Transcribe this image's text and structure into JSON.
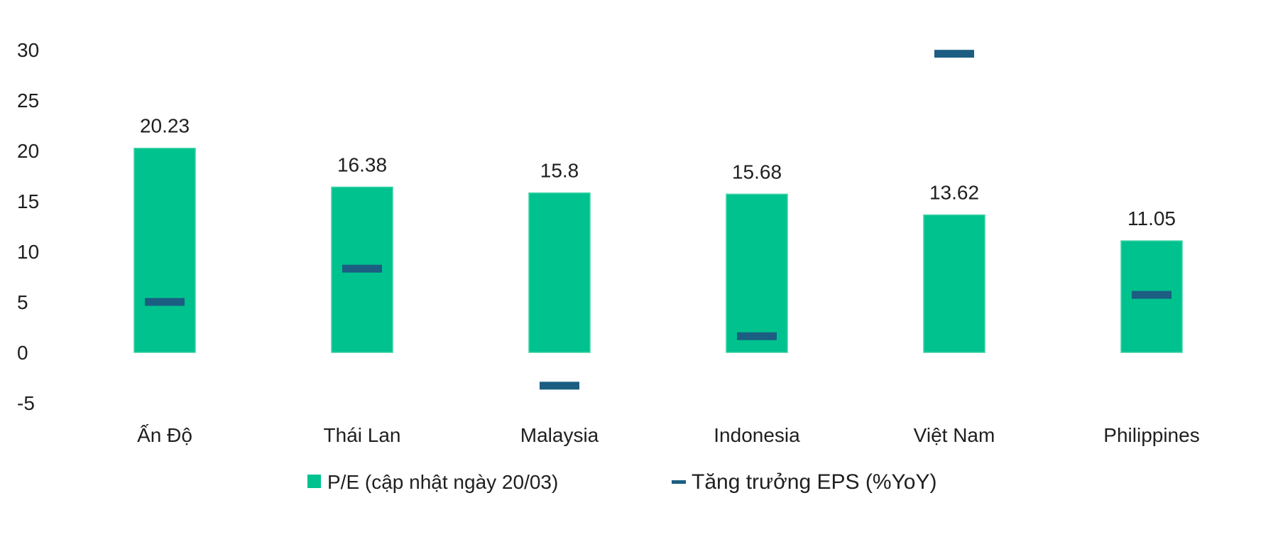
{
  "chart_data": {
    "type": "bar",
    "categories": [
      "Ấn Độ",
      "Thái Lan",
      "Malaysia",
      "Indonesia",
      "Việt Nam",
      "Philippines"
    ],
    "series": [
      {
        "name": "P/E (cập nhật ngày 20/03)",
        "kind": "bar",
        "color": "#00c28e",
        "values": [
          20.23,
          16.38,
          15.8,
          15.68,
          13.62,
          11.05
        ],
        "data_labels": [
          "20.23",
          "16.38",
          "15.8",
          "15.68",
          "13.62",
          "11.05"
        ]
      },
      {
        "name": "Tăng trưởng EPS (%YoY)",
        "kind": "marker-dash",
        "color": "#1b5e82",
        "values": [
          5.0,
          8.3,
          -3.3,
          1.6,
          29.6,
          5.7
        ]
      }
    ],
    "yticks": [
      30,
      25,
      20,
      15,
      10,
      5,
      0,
      -5
    ],
    "ylim": [
      -5,
      30
    ],
    "xlabel": "",
    "ylabel": "",
    "title": "",
    "grid": false,
    "legend_position": "bottom"
  }
}
